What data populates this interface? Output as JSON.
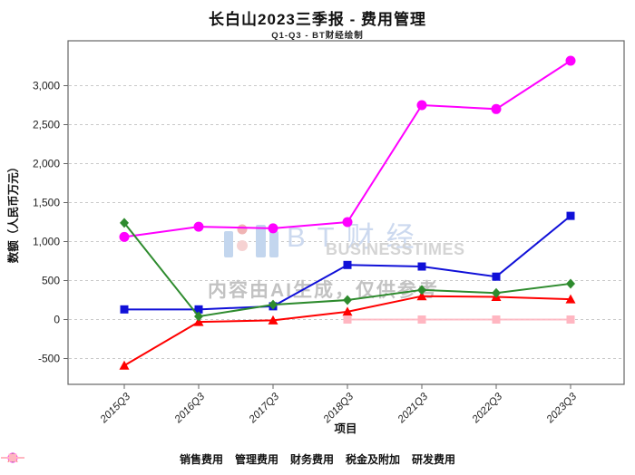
{
  "title": "长白山2023三季报 - 费用管理",
  "subtitle": "Q1-Q3 - BT财经绘制",
  "watermark": {
    "brand_cn": "BT财经",
    "brand_en": "BUSINESSTIMES",
    "disclaimer": "内容由AI生成，仅供参考",
    "brand_cn_color": "#ccd9ef",
    "brand_en_color": "#d4d4d4",
    "disclaimer_color": "#c2c2c2",
    "logo_bar_color": "#c3d6ee",
    "logo_dot_top_color": "#f0b4b4",
    "logo_dot_bottom_color": "#f6d2d2"
  },
  "chart_data": {
    "type": "line",
    "title": "长白山2023三季报 - 费用管理",
    "subtitle": "Q1-Q3 - BT财经绘制",
    "xlabel": "项目",
    "ylabel": "数额（人民币万元）",
    "categories": [
      "2015Q3",
      "2016Q3",
      "2017Q3",
      "2018Q3",
      "2021Q3",
      "2022Q3",
      "2023Q3"
    ],
    "series": [
      {
        "name": "销售费用",
        "color": "#1010d8",
        "marker": "square",
        "values": [
          130,
          130,
          170,
          700,
          680,
          550,
          1330
        ]
      },
      {
        "name": "管理费用",
        "color": "#ff00ff",
        "marker": "circle",
        "values": [
          1060,
          1190,
          1170,
          1250,
          2750,
          2700,
          3320
        ]
      },
      {
        "name": "财务费用",
        "color": "#ff0000",
        "marker": "triangle",
        "values": [
          -590,
          -30,
          -10,
          100,
          300,
          290,
          260
        ]
      },
      {
        "name": "税金及附加",
        "color": "#2e8b2e",
        "marker": "diamond",
        "values": [
          1240,
          40,
          190,
          250,
          380,
          340,
          460
        ]
      },
      {
        "name": "研发费用",
        "color": "#ffb6c1",
        "marker": "square",
        "values": [
          null,
          null,
          null,
          0,
          0,
          0,
          0
        ]
      }
    ],
    "yticks": [
      -500,
      0,
      500,
      1000,
      1500,
      2000,
      2500,
      3000
    ],
    "ylim": [
      -830,
      3575
    ],
    "grid": true,
    "grid_color": "#c9c9c9",
    "spine_color": "#666666",
    "legend_position": "bottom"
  }
}
